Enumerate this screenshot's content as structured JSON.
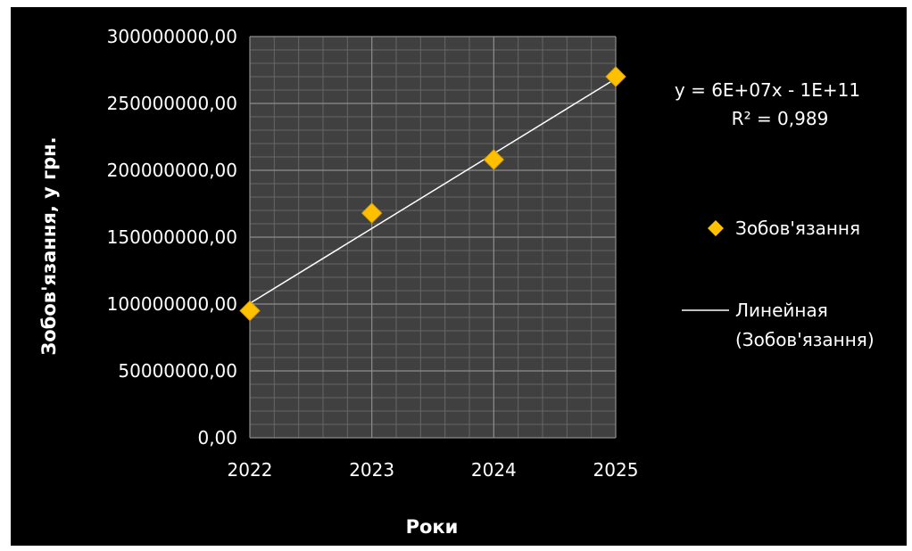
{
  "chart_data": {
    "type": "scatter",
    "title": "",
    "xlabel": "Роки",
    "ylabel": "Зобов'язання, у грн.",
    "xlim": [
      2022,
      2025
    ],
    "ylim": [
      0,
      300000000
    ],
    "x_ticks": [
      "2022",
      "2023",
      "2024",
      "2025"
    ],
    "y_ticks": [
      "0,00",
      "50000000,00",
      "100000000,00",
      "150000000,00",
      "200000000,00",
      "250000000,00",
      "300000000,00"
    ],
    "grid": true,
    "legend_position": "right",
    "series": [
      {
        "name": "Зобов'язання",
        "x": [
          2022,
          2023,
          2024,
          2025
        ],
        "y": [
          95000000,
          168000000,
          208000000,
          270000000
        ],
        "marker": "diamond",
        "color": "#ffc000"
      }
    ],
    "trendline": {
      "name_line1": "Линейная",
      "name_line2": "(Зобов'язання)",
      "type": "linear",
      "x": [
        2022,
        2025
      ],
      "y": [
        100500000,
        268500000
      ],
      "color": "#ffffff"
    },
    "equation": "y = 6E+07x - 1E+11",
    "r_squared": "R² = 0,989"
  },
  "colors": {
    "background": "#000000",
    "plot_area": "#404040",
    "major_grid": "#8c8c8c",
    "minor_grid": "#666666",
    "marker": "#ffc000",
    "marker_edge": "#d9a000",
    "text": "#ffffff"
  }
}
